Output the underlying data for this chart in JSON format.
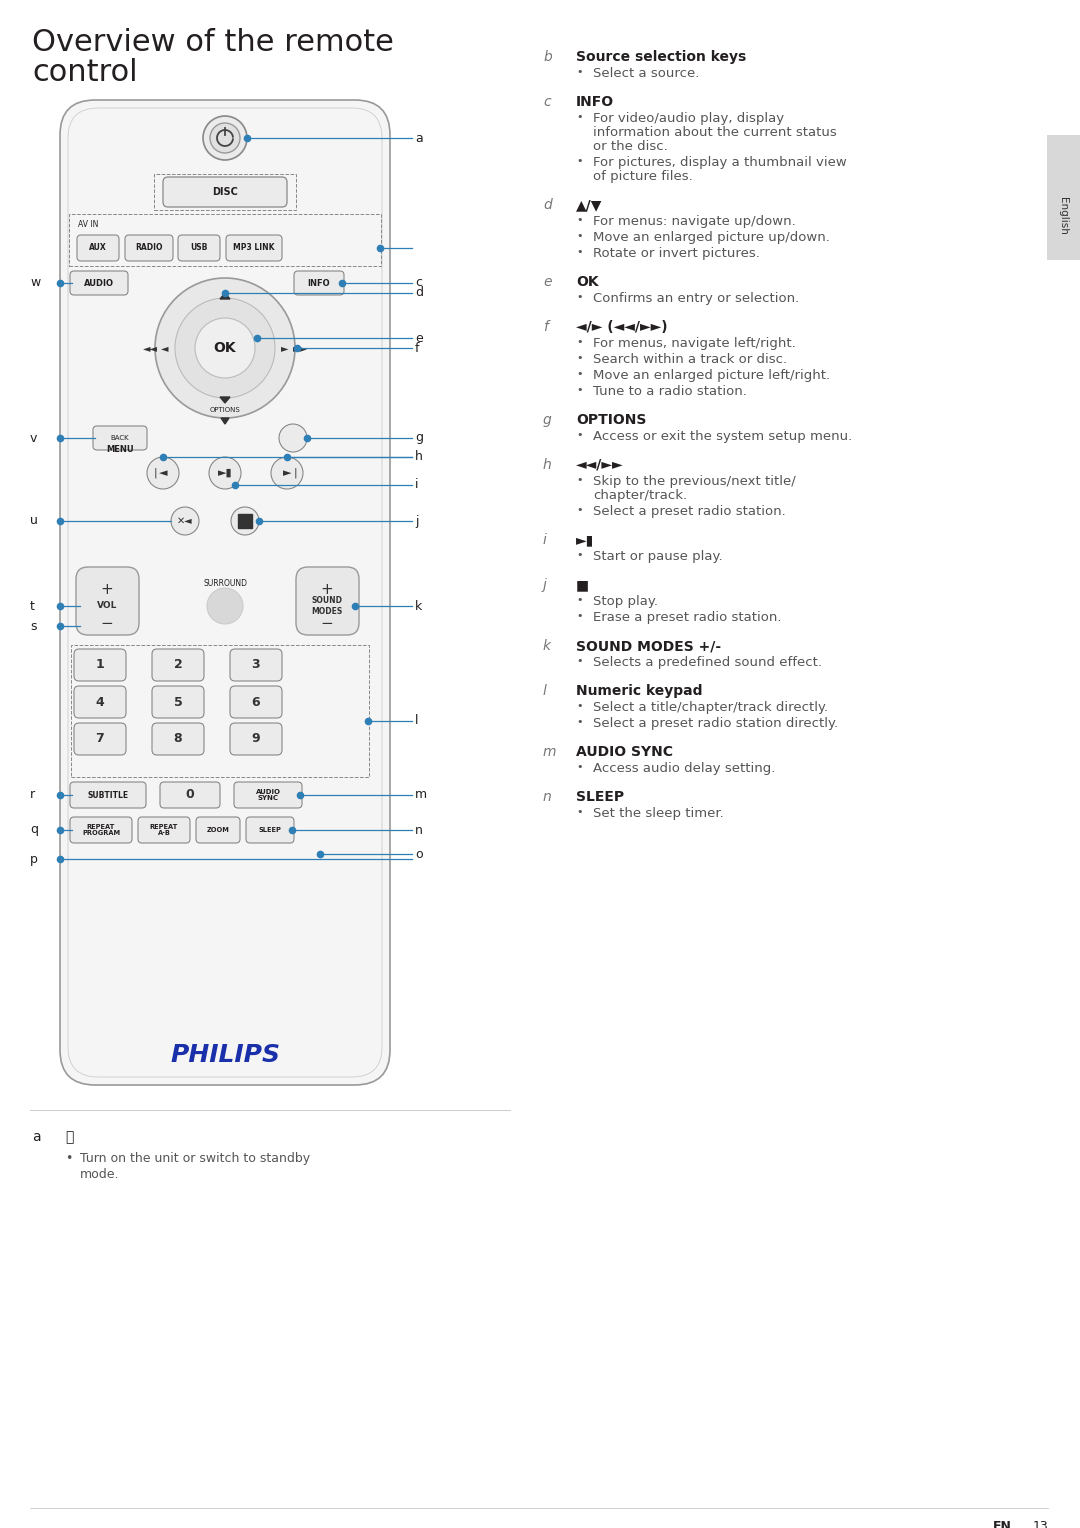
{
  "title_line1": "Overview of the remote",
  "title_line2": "control",
  "background_color": "#ffffff",
  "text_color": "#231f20",
  "gray_text": "#555555",
  "dot_color": "#2e7fb5",
  "line_color": "#2e7fb5",
  "light_gray": "#d8d8d8",
  "remote_edge": "#aaaaaa",
  "remote_fill": "#f5f5f5",
  "right_items": [
    {
      "letter": "b",
      "heading": "Source selection keys",
      "heading_bold": true,
      "bullets": [
        "Select a source."
      ]
    },
    {
      "letter": "c",
      "heading": "INFO",
      "heading_bold": true,
      "bullets": [
        "For video/audio play, display\ninformation about the current status\nor the disc.",
        "For pictures, display a thumbnail view\nof picture files."
      ]
    },
    {
      "letter": "d",
      "heading": "▲/▼",
      "heading_bold": true,
      "bullets": [
        "For menus: navigate up/down.",
        "Move an enlarged picture up/down.",
        "Rotate or invert pictures."
      ]
    },
    {
      "letter": "e",
      "heading": "OK",
      "heading_bold": true,
      "bullets": [
        "Confirms an entry or selection."
      ]
    },
    {
      "letter": "f",
      "heading": "◄/► (◄◄/►►)",
      "heading_bold": true,
      "bullets": [
        "For menus, navigate left/right.",
        "Search within a track or disc.",
        "Move an enlarged picture left/right.",
        "Tune to a radio station."
      ]
    },
    {
      "letter": "g",
      "heading": "OPTIONS",
      "heading_bold": true,
      "bullets": [
        "Access or exit the system setup menu."
      ]
    },
    {
      "letter": "h",
      "heading": "◄◄/►►",
      "heading_bold": true,
      "bullets": [
        "Skip to the previous/next title/\nchapter/track.",
        "Select a preset radio station."
      ]
    },
    {
      "letter": "i",
      "heading": "►▮",
      "heading_bold": true,
      "bullets": [
        "Start or pause play."
      ]
    },
    {
      "letter": "j",
      "heading": "■",
      "heading_bold": true,
      "bullets": [
        "Stop play.",
        "Erase a preset radio station."
      ]
    },
    {
      "letter": "k",
      "heading": "SOUND MODES +/-",
      "heading_bold": true,
      "bullets": [
        "Selects a predefined sound effect."
      ]
    },
    {
      "letter": "l",
      "heading": "Numeric keypad",
      "heading_bold": true,
      "bullets": [
        "Select a title/chapter/track directly.",
        "Select a preset radio station directly."
      ]
    },
    {
      "letter": "m",
      "heading": "AUDIO SYNC",
      "heading_bold": true,
      "bullets": [
        "Access audio delay setting."
      ]
    },
    {
      "letter": "n",
      "heading": "SLEEP",
      "heading_bold": true,
      "bullets": [
        "Set the sleep timer."
      ]
    }
  ],
  "bottom_letter": "a",
  "bottom_symbol": "⏻",
  "bottom_bullet": "Turn on the unit or switch to standby\nmode."
}
